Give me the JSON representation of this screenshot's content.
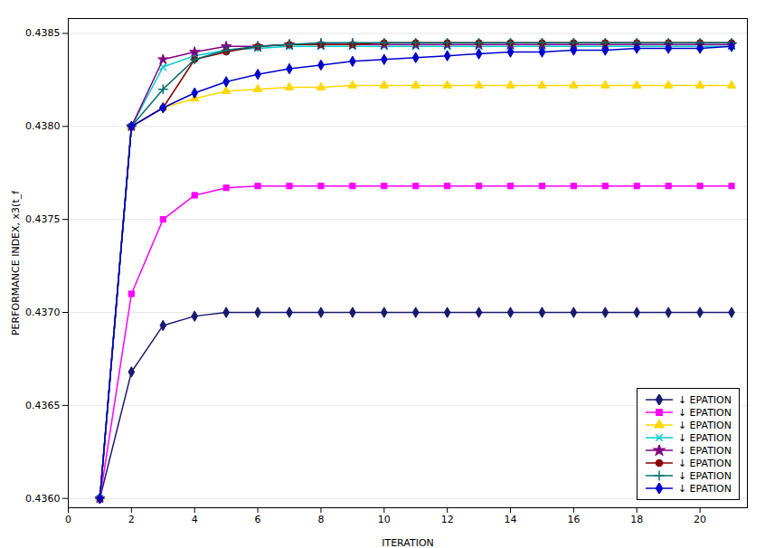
{
  "chart_data": {
    "type": "line",
    "xlabel": "ITERATION",
    "ylabel": "PERFORMANCE INDEX, x3(t_f",
    "x": [
      1,
      2,
      3,
      4,
      5,
      6,
      7,
      8,
      9,
      10,
      11,
      12,
      13,
      14,
      15,
      16,
      17,
      18,
      19,
      20,
      21
    ],
    "series": [
      {
        "name": "↓ EPATION",
        "color": "#191970",
        "marker": "diamond",
        "values": [
          0.436,
          0.43668,
          0.43693,
          0.43698,
          0.437,
          0.437,
          0.437,
          0.437,
          0.437,
          0.437,
          0.437,
          0.437,
          0.437,
          0.437,
          0.437,
          0.437,
          0.437,
          0.437,
          0.437,
          0.437,
          0.437
        ]
      },
      {
        "name": "↓ EPATION",
        "color": "#FF00FF",
        "marker": "square",
        "values": [
          0.436,
          0.4371,
          0.4375,
          0.43763,
          0.43767,
          0.43768,
          0.43768,
          0.43768,
          0.43768,
          0.43768,
          0.43768,
          0.43768,
          0.43768,
          0.43768,
          0.43768,
          0.43768,
          0.43768,
          0.43768,
          0.43768,
          0.43768,
          0.43768
        ]
      },
      {
        "name": "↓ EPATION",
        "color": "#FFD700",
        "marker": "triangle",
        "values": [
          0.436,
          0.438,
          0.4381,
          0.43815,
          0.43819,
          0.4382,
          0.43821,
          0.43821,
          0.43822,
          0.43822,
          0.43822,
          0.43822,
          0.43822,
          0.43822,
          0.43822,
          0.43822,
          0.43822,
          0.43822,
          0.43822,
          0.43822,
          0.43822
        ]
      },
      {
        "name": "↓ EPATION",
        "color": "#00CCCC",
        "marker": "times",
        "values": [
          0.436,
          0.438,
          0.43832,
          0.43838,
          0.43841,
          0.43842,
          0.43843,
          0.43843,
          0.43843,
          0.43843,
          0.43843,
          0.43843,
          0.43843,
          0.43843,
          0.43843,
          0.43843,
          0.43843,
          0.43843,
          0.43843,
          0.43843,
          0.43843
        ]
      },
      {
        "name": "↓ EPATION",
        "color": "#800080",
        "marker": "star",
        "values": [
          0.436,
          0.438,
          0.43836,
          0.4384,
          0.43843,
          0.43843,
          0.43844,
          0.43844,
          0.43844,
          0.43844,
          0.43844,
          0.43844,
          0.43844,
          0.43844,
          0.43844,
          0.43844,
          0.43844,
          0.43844,
          0.43844,
          0.43844,
          0.43844
        ]
      },
      {
        "name": "↓ EPATION",
        "color": "#8B0000",
        "marker": "circle",
        "values": [
          0.436,
          0.438,
          0.4381,
          0.43836,
          0.4384,
          0.43843,
          0.43844,
          0.43844,
          0.43844,
          0.43845,
          0.43845,
          0.43845,
          0.43845,
          0.43845,
          0.43845,
          0.43845,
          0.43845,
          0.43845,
          0.43845,
          0.43845,
          0.43845
        ]
      },
      {
        "name": "↓ EPATION",
        "color": "#007070",
        "marker": "plus",
        "values": [
          0.436,
          0.438,
          0.4382,
          0.43836,
          0.43841,
          0.43843,
          0.43844,
          0.43845,
          0.43845,
          0.43845,
          0.43845,
          0.43845,
          0.43845,
          0.43845,
          0.43845,
          0.43845,
          0.43845,
          0.43845,
          0.43845,
          0.43845,
          0.43845
        ]
      },
      {
        "name": "↓ EPATION",
        "color": "#0000CD",
        "marker": "diamond",
        "values": [
          0.436,
          0.438,
          0.4381,
          0.43818,
          0.43824,
          0.43828,
          0.43831,
          0.43833,
          0.43835,
          0.43836,
          0.43837,
          0.43838,
          0.43839,
          0.4384,
          0.4384,
          0.43841,
          0.43841,
          0.43842,
          0.43842,
          0.43842,
          0.43843
        ]
      }
    ],
    "xlim": [
      0,
      21.5
    ],
    "ylim": [
      0.43595,
      0.43858
    ],
    "xticks": [
      0,
      2,
      4,
      6,
      8,
      10,
      12,
      14,
      16,
      18,
      20
    ],
    "yticks": [
      {
        "value": 0.436,
        "label": "0.4360"
      },
      0.4365,
      {
        "value": 0.437,
        "label": "0.4370"
      },
      0.4375,
      {
        "value": 0.438,
        "label": "0.4380"
      },
      0.4385
    ],
    "grid": "y",
    "legend": "lower right"
  }
}
